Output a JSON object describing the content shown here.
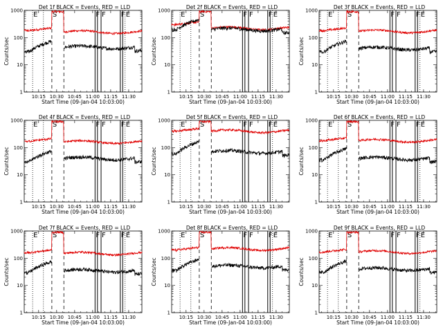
{
  "chart_data": {
    "type": "line",
    "yscale": "log",
    "ylim": [
      1,
      1000
    ],
    "yticks": [
      "1",
      "10",
      "100",
      "1000"
    ],
    "xlim": [
      "10:03",
      "11:41"
    ],
    "xticks": [
      "10:15",
      "10:30",
      "10:45",
      "11:00",
      "11:15",
      "11:30"
    ],
    "xlabel": "Start Time (09-Jan-04 10:03:00)",
    "ylabel": "Counts/sec",
    "colors": {
      "events": "#000000",
      "lld": "#e00000"
    },
    "markers": [
      {
        "label": "E",
        "time": "10:10",
        "style": "dotted"
      },
      {
        "label": "",
        "time": "10:19",
        "style": "dotted"
      },
      {
        "label": "S",
        "time": "10:26",
        "style": "dashed"
      },
      {
        "label": "",
        "time": "10:36",
        "style": "dashed"
      },
      {
        "label": "F",
        "time": "11:02",
        "style": "solid"
      },
      {
        "label": "",
        "time": "11:04",
        "style": "solid"
      },
      {
        "label": "F",
        "time": "11:07",
        "style": "solid"
      },
      {
        "label": "F",
        "time": "11:23",
        "style": "solid"
      },
      {
        "label": "",
        "time": "11:25",
        "style": "solid"
      },
      {
        "label": "E",
        "time": "11:27",
        "style": "dotted"
      }
    ],
    "panels": [
      {
        "title": "Det 1f BLACK = Events, RED = LLD",
        "events_level": 44,
        "lld_level": 160,
        "lld_s": 900,
        "lld_pre": 180,
        "events_pre": 30,
        "jump": 1.0
      },
      {
        "title": "Det 2f BLACK = Events, RED = LLD",
        "events_level": 200,
        "lld_level": 220,
        "lld_s": 900,
        "lld_pre": 300,
        "events_pre": 200,
        "jump": 0.9
      },
      {
        "title": "Det 3f BLACK = Events, RED = LLD",
        "events_level": 40,
        "lld_level": 170,
        "lld_s": 900,
        "lld_pre": 180,
        "events_pre": 30,
        "jump": 1.0
      },
      {
        "title": "Det 4f BLACK = Events, RED = LLD",
        "events_level": 40,
        "lld_level": 160,
        "lld_s": 900,
        "lld_pre": 170,
        "events_pre": 30,
        "jump": 1.0
      },
      {
        "title": "Det 5f BLACK = Events, RED = LLD",
        "events_level": 70,
        "lld_level": 400,
        "lld_s": 900,
        "lld_pre": 400,
        "events_pre": 60,
        "jump": 1.2
      },
      {
        "title": "Det 6f BLACK = Events, RED = LLD",
        "events_level": 40,
        "lld_level": 180,
        "lld_s": 900,
        "lld_pre": 180,
        "events_pre": 35,
        "jump": 1.1
      },
      {
        "title": "Det 7f BLACK = Events, RED = LLD",
        "events_level": 35,
        "lld_level": 150,
        "lld_s": 900,
        "lld_pre": 160,
        "events_pre": 30,
        "jump": 1.0
      },
      {
        "title": "Det 8f BLACK = Events, RED = LLD",
        "events_level": 50,
        "lld_level": 220,
        "lld_s": 900,
        "lld_pre": 200,
        "events_pre": 35,
        "jump": 1.1
      },
      {
        "title": "Det 9f BLACK = Events, RED = LLD",
        "events_level": 40,
        "lld_level": 170,
        "lld_s": 900,
        "lld_pre": 170,
        "events_pre": 30,
        "jump": 1.1
      }
    ]
  }
}
